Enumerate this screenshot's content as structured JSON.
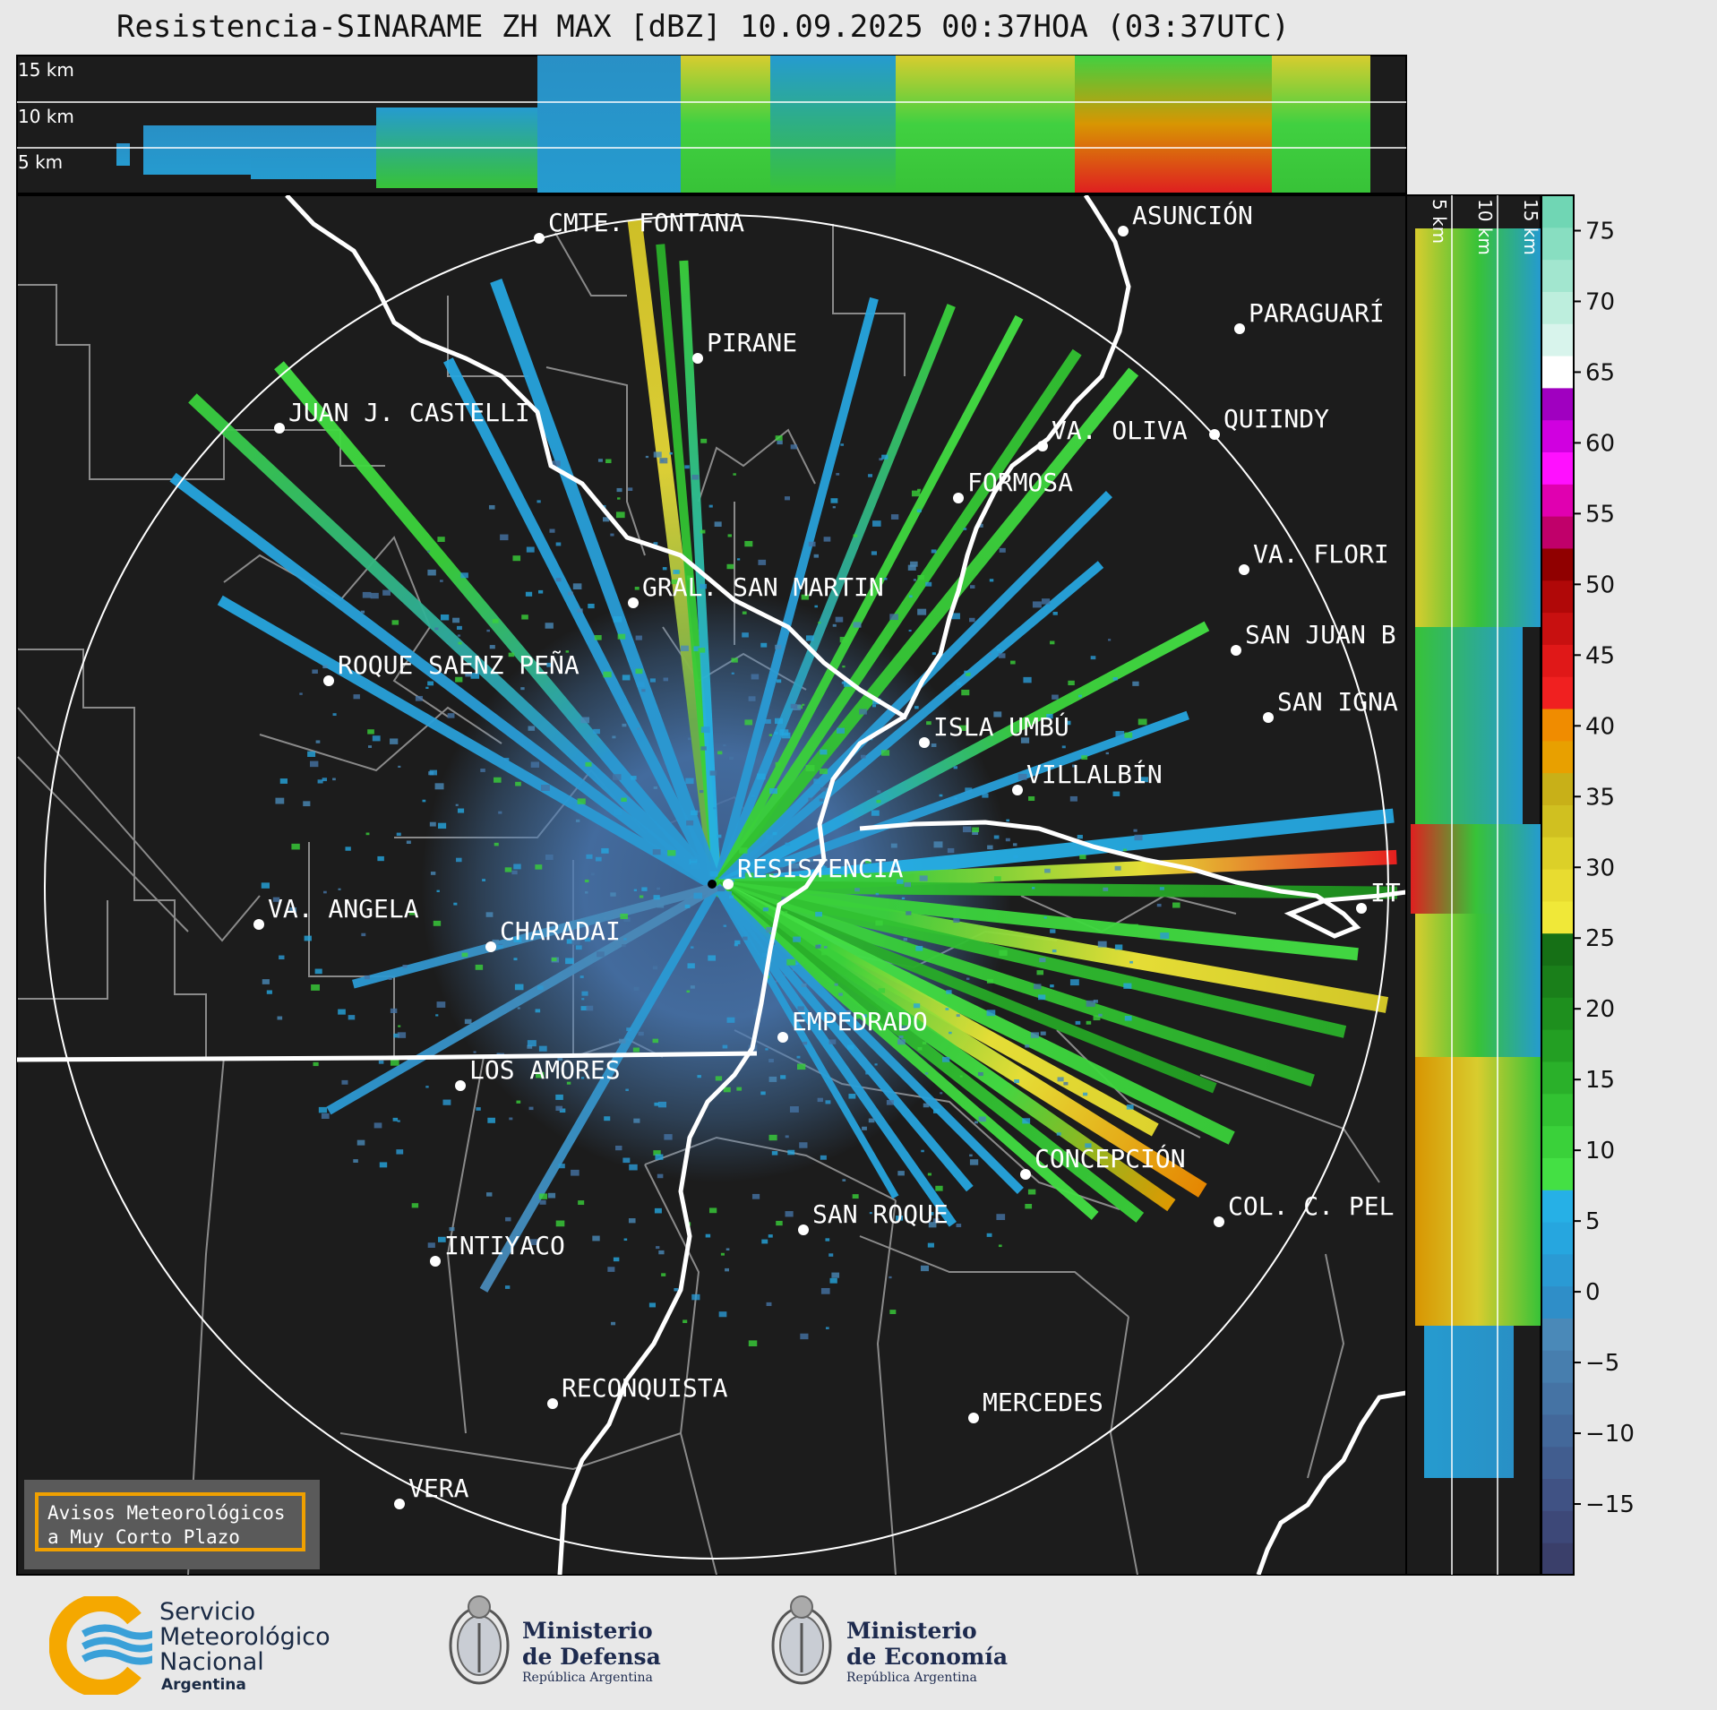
{
  "title": "Resistencia-SINARAME ZH MAX [dBZ] 10.09.2025 00:37HOA (03:37UTC)",
  "top_profile": {
    "labels": [
      "15 km",
      "10 km",
      "5 km"
    ]
  },
  "side_profile": {
    "labels": [
      "5 km",
      "10 km",
      "15 km"
    ]
  },
  "colorbar": {
    "ticks": [
      "75",
      "70",
      "65",
      "60",
      "55",
      "50",
      "45",
      "40",
      "35",
      "30",
      "25",
      "20",
      "15",
      "10",
      "5",
      "0",
      "−5",
      "−10",
      "−15"
    ],
    "scale": [
      "#3a3f6a",
      "#3d4878",
      "#405284",
      "#415d8f",
      "#43689a",
      "#4573a4",
      "#477eae",
      "#4a89b8",
      "#2f8ec8",
      "#2a9ad4",
      "#26a6df",
      "#26b0e6",
      "#44e044",
      "#3ad13a",
      "#32c232",
      "#2ab02a",
      "#239f23",
      "#1e8f1e",
      "#1a7f1a",
      "#167016",
      "#f0e838",
      "#e8dc30",
      "#dcd028",
      "#d0c020",
      "#c8b018",
      "#e8a000",
      "#f08c00",
      "#f02020",
      "#e01818",
      "#c81010",
      "#b00808",
      "#900000",
      "#c0006a",
      "#e000b0",
      "#ff10ff",
      "#d000e0",
      "#a000c0",
      "#ffffff",
      "#d8f4ec",
      "#bdeedd",
      "#a2e6cf",
      "#88dec1",
      "#70d6b4"
    ]
  },
  "places": [
    {
      "name": "CMTE. FONTANA"
    },
    {
      "name": "PIRANE"
    },
    {
      "name": "JUAN J. CASTELLI"
    },
    {
      "name": "ASUNCIÓN"
    },
    {
      "name": "PARAGUARÍ"
    },
    {
      "name": "VA. OLIVA"
    },
    {
      "name": "QUIINDY"
    },
    {
      "name": "FORMOSA"
    },
    {
      "name": "VA. FLORI"
    },
    {
      "name": "GRAL. SAN MARTIN"
    },
    {
      "name": "SAN JUAN B"
    },
    {
      "name": "ROQUE SAENZ PEÑA"
    },
    {
      "name": "SAN IGNA"
    },
    {
      "name": "ISLA UMBÚ"
    },
    {
      "name": "VILLALBÍN"
    },
    {
      "name": "RESISTENCIA"
    },
    {
      "name": "VA. ANGELA"
    },
    {
      "name": "CHARADAI"
    },
    {
      "name": "IT"
    },
    {
      "name": "EMPEDRADO"
    },
    {
      "name": "LOS AMORES"
    },
    {
      "name": "CONCEPCIÓN"
    },
    {
      "name": "COL. C. PEL"
    },
    {
      "name": "SAN ROQUE"
    },
    {
      "name": "INTIYACO"
    },
    {
      "name": "RECONQUISTA"
    },
    {
      "name": "MERCEDES"
    },
    {
      "name": "VERA"
    }
  ],
  "notice": {
    "line1": "Avisos Meteorológicos",
    "line2": "a Muy Corto Plazo"
  },
  "logos": {
    "smn": {
      "line1": "Servicio",
      "line2": "Meteorológico",
      "line3": "Nacional",
      "line4": "Argentina"
    },
    "defensa": {
      "line1": "Ministerio",
      "line2": "de Defensa",
      "line3": "República Argentina"
    },
    "economia": {
      "line1": "Ministerio",
      "line2": "de Economía",
      "line3": "República Argentina"
    }
  }
}
